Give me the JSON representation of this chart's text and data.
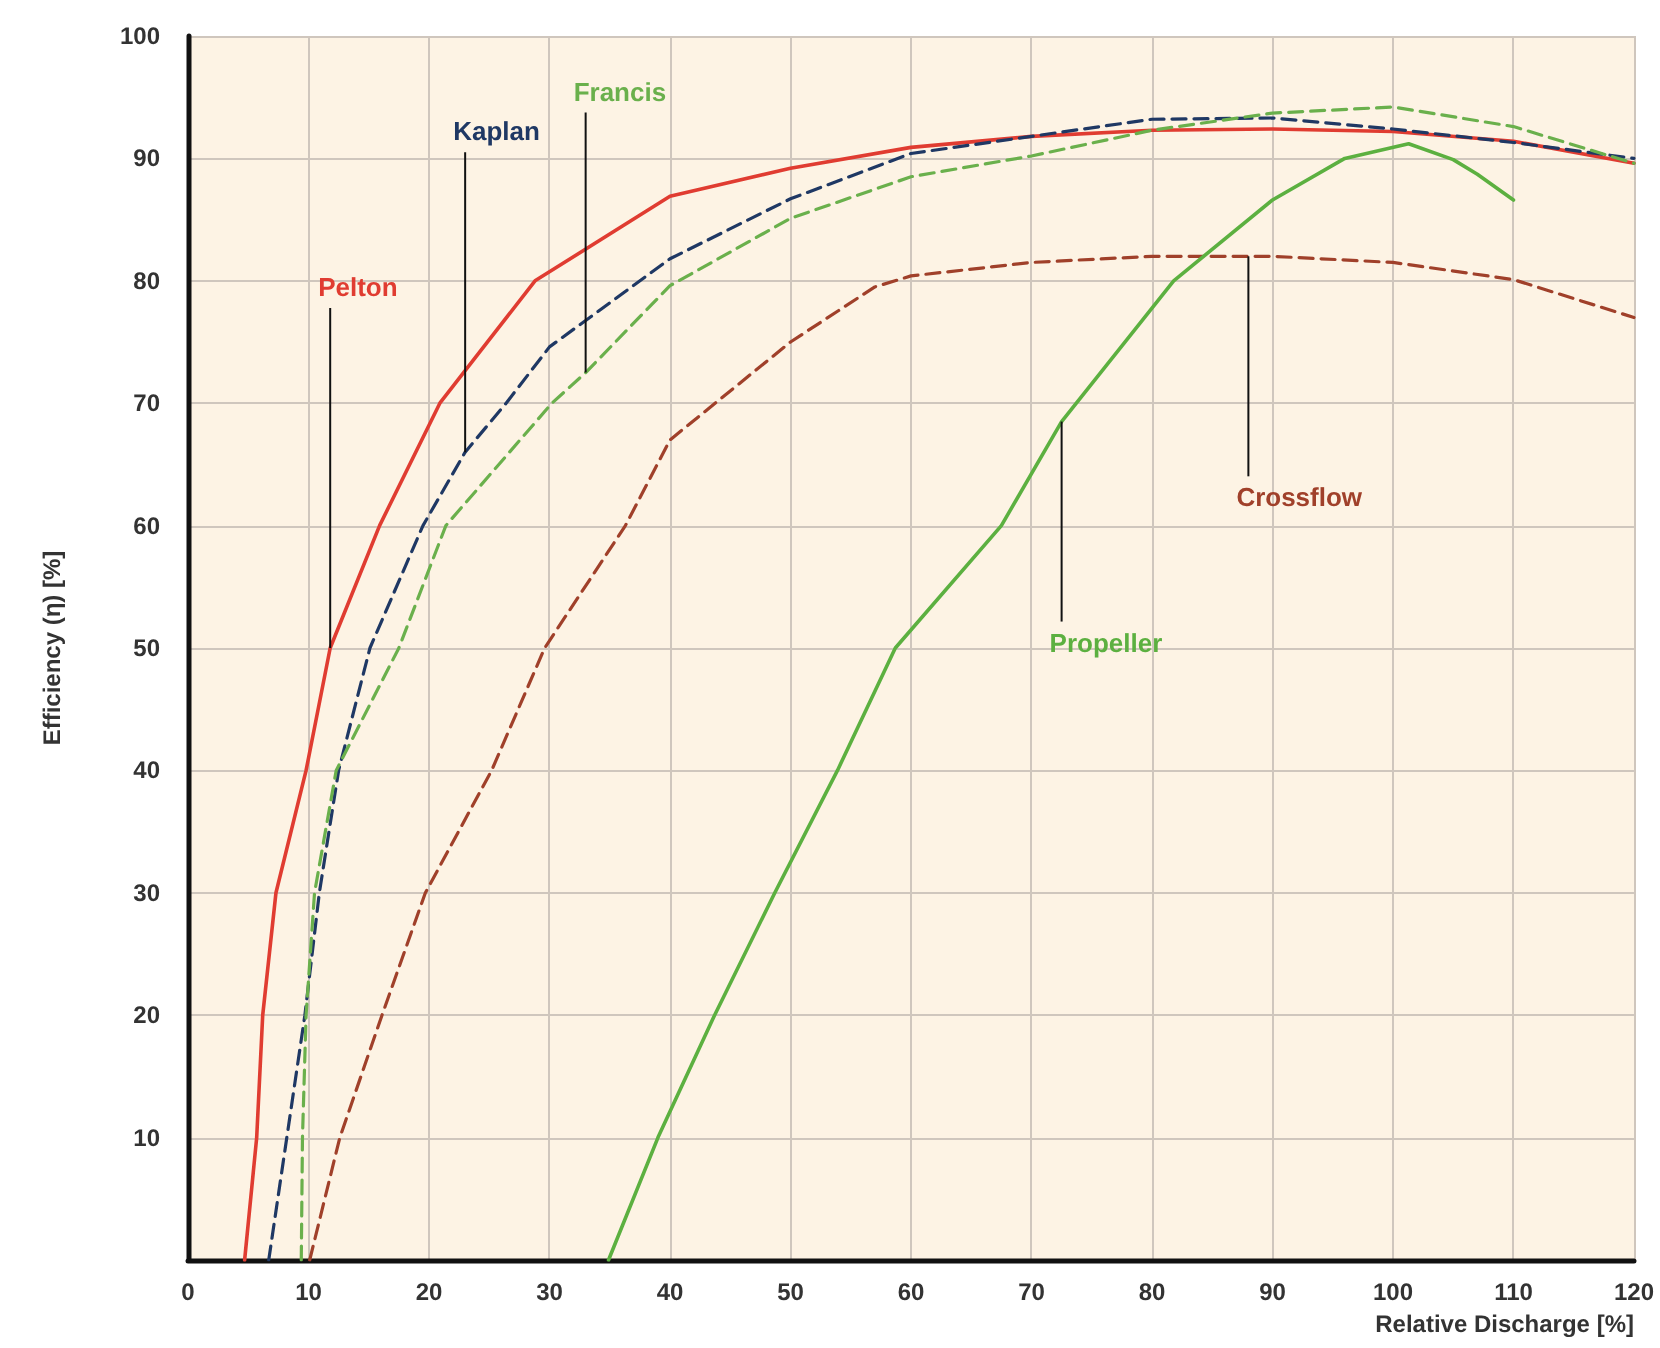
{
  "chart_data": {
    "type": "line",
    "xlabel": "Relative Discharge [%]",
    "ylabel": "Efficiency (η) [%]",
    "xlim": [
      0,
      120
    ],
    "xticks": [
      0,
      10,
      20,
      30,
      40,
      50,
      60,
      70,
      80,
      90,
      100,
      110,
      120
    ],
    "ylim": [
      0,
      100
    ],
    "yticks": [
      10,
      20,
      30,
      40,
      50,
      60,
      70,
      80,
      90,
      100
    ],
    "grid": true,
    "legend": false,
    "marker": "none",
    "series": [
      {
        "name": "Pelton",
        "color": "#e03c31",
        "line_style": "solid",
        "x": [
          4.7,
          5.7,
          6.2,
          7.3,
          9.8,
          11.8,
          15.9,
          20.9,
          28.8,
          40,
          50,
          60,
          70,
          80,
          90,
          100,
          110,
          120
        ],
        "values": [
          0,
          10,
          20,
          30,
          40,
          50,
          60,
          70,
          80,
          86.9,
          89.2,
          90.9,
          91.8,
          92.3,
          92.4,
          92.2,
          91.4,
          89.6
        ]
      },
      {
        "name": "Kaplan",
        "color": "#1f3864",
        "line_style": "dashed",
        "x": [
          6.7,
          8.2,
          9.7,
          10.9,
          12.5,
          15.1,
          19.5,
          23,
          26.4,
          30,
          40,
          50,
          60,
          70,
          80,
          90,
          100,
          110,
          120
        ],
        "values": [
          0,
          10,
          20,
          30,
          40,
          50,
          60,
          66,
          70,
          74.6,
          81.8,
          86.7,
          90.4,
          91.8,
          93.2,
          93.3,
          92.4,
          91.3,
          90
        ]
      },
      {
        "name": "Francis",
        "color": "#6ab04c",
        "line_style": "dashed",
        "x": [
          9.4,
          9.5,
          9.8,
          10.5,
          12.3,
          17.5,
          21.4,
          30.2,
          33,
          40,
          50,
          60,
          70,
          80,
          90,
          100,
          110,
          120
        ],
        "values": [
          0,
          10,
          20,
          30,
          40,
          50,
          60,
          70,
          72.5,
          79.6,
          85.1,
          88.5,
          90.2,
          92.3,
          93.7,
          94.2,
          92.6,
          89.6
        ]
      },
      {
        "name": "Crossflow",
        "color": "#a0402a",
        "line_style": "dashed",
        "x": [
          10.1,
          12.6,
          16.1,
          19.7,
          25.2,
          29.6,
          36.3,
          40,
          50,
          57,
          60,
          70,
          80,
          88,
          90,
          100,
          110,
          120
        ],
        "values": [
          0,
          10,
          20,
          30,
          40,
          50,
          60,
          67,
          75,
          79.5,
          80.4,
          81.5,
          82,
          82,
          82,
          81.5,
          80.1,
          77
        ]
      },
      {
        "name": "Propeller",
        "color": "#5cb040",
        "line_style": "solid",
        "x": [
          34.9,
          39,
          43.7,
          48.7,
          53.9,
          58.7,
          67.5,
          72.5,
          81.8,
          90,
          96,
          101.3,
          105,
          107,
          110
        ],
        "values": [
          0,
          10,
          20,
          30,
          40,
          50,
          60,
          68.5,
          80,
          86.6,
          90,
          91.2,
          89.9,
          88.7,
          86.6
        ]
      }
    ]
  }
}
